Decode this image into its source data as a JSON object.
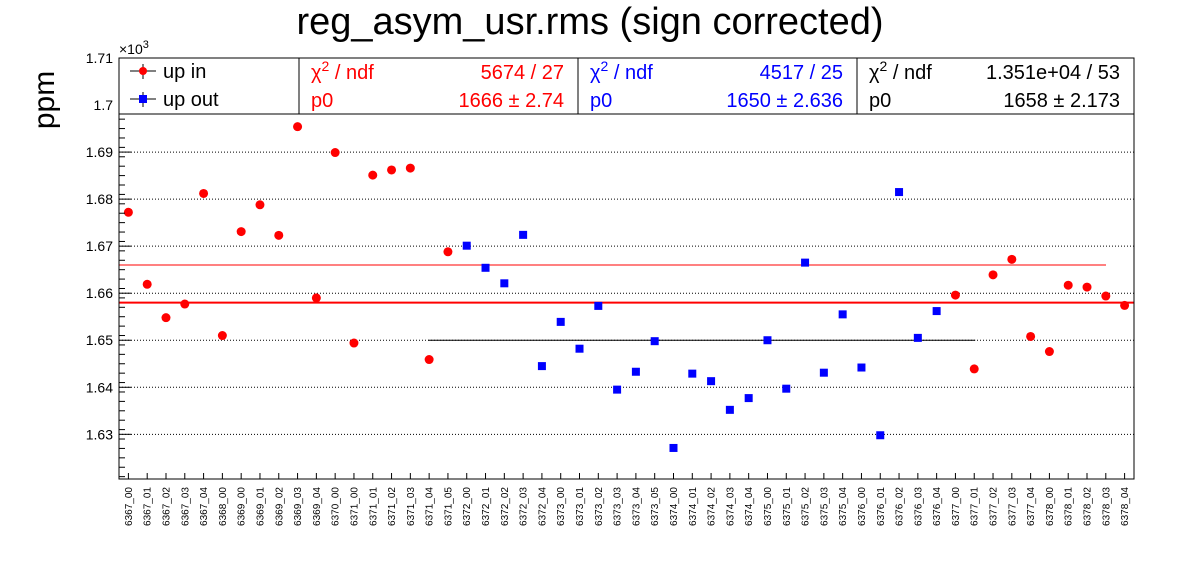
{
  "chart_data": {
    "type": "scatter",
    "title": "reg_asym_usr.rms (sign corrected)",
    "ylabel": "ppm",
    "yaxis_multiplier": "×10",
    "yaxis_multiplier_exp": "3",
    "ylim": [
      1.6205,
      1.71
    ],
    "yticks": [
      1.63,
      1.64,
      1.65,
      1.66,
      1.67,
      1.68,
      1.69,
      1.7,
      1.71
    ],
    "ytick_labels": [
      "1.63",
      "1.64",
      "1.65",
      "1.66",
      "1.67",
      "1.68",
      "1.69",
      "1.7",
      "1.71"
    ],
    "grid": true,
    "categories": [
      "6367_00",
      "6367_01",
      "6367_02",
      "6367_03",
      "6367_04",
      "6368_00",
      "6369_00",
      "6369_01",
      "6369_02",
      "6369_03",
      "6369_04",
      "6370_00",
      "6371_00",
      "6371_01",
      "6371_02",
      "6371_03",
      "6371_04",
      "6371_05",
      "6372_00",
      "6372_01",
      "6372_02",
      "6372_03",
      "6372_04",
      "6373_00",
      "6373_01",
      "6373_02",
      "6373_03",
      "6373_04",
      "6373_05",
      "6374_00",
      "6374_01",
      "6374_02",
      "6374_03",
      "6374_04",
      "6375_00",
      "6375_01",
      "6375_02",
      "6375_03",
      "6375_04",
      "6376_00",
      "6376_01",
      "6376_02",
      "6376_03",
      "6376_04",
      "6377_00",
      "6377_01",
      "6377_02",
      "6377_03",
      "6377_04",
      "6378_00",
      "6378_01",
      "6378_02",
      "6378_03",
      "6378_04"
    ],
    "series": [
      {
        "name": "up in",
        "color": "#ff0000",
        "marker": "circle",
        "points": [
          [
            0,
            1.6772
          ],
          [
            1,
            1.6619
          ],
          [
            2,
            1.6548
          ],
          [
            3,
            1.6577
          ],
          [
            4,
            1.6812
          ],
          [
            5,
            1.651
          ],
          [
            6,
            1.6731
          ],
          [
            7,
            1.6788
          ],
          [
            8,
            1.6723
          ],
          [
            9,
            1.6954
          ],
          [
            10,
            1.659
          ],
          [
            11,
            1.6899
          ],
          [
            12,
            1.6494
          ],
          [
            13,
            1.6851
          ],
          [
            14,
            1.6862
          ],
          [
            15,
            1.6866
          ],
          [
            16,
            1.6459
          ],
          [
            17,
            1.6688
          ],
          [
            44,
            1.6596
          ],
          [
            45,
            1.6439
          ],
          [
            46,
            1.6639
          ],
          [
            47,
            1.6672
          ],
          [
            48,
            1.6508
          ],
          [
            49,
            1.6476
          ],
          [
            50,
            1.6617
          ],
          [
            51,
            1.6613
          ],
          [
            52,
            1.6594
          ],
          [
            53,
            1.6574
          ]
        ],
        "fit_p0": 1666,
        "fit_range": [
          0,
          53
        ]
      },
      {
        "name": "up out",
        "color": "#0000ff",
        "marker": "square",
        "points": [
          [
            18,
            1.6701
          ],
          [
            19,
            1.6654
          ],
          [
            20,
            1.6621
          ],
          [
            21,
            1.6724
          ],
          [
            22,
            1.6445
          ],
          [
            23,
            1.6539
          ],
          [
            24,
            1.6482
          ],
          [
            25,
            1.6573
          ],
          [
            26,
            1.6395
          ],
          [
            27,
            1.6433
          ],
          [
            28,
            1.6498
          ],
          [
            29,
            1.6271
          ],
          [
            30,
            1.6429
          ],
          [
            31,
            1.6413
          ],
          [
            32,
            1.6352
          ],
          [
            33,
            1.6377
          ],
          [
            34,
            1.65
          ],
          [
            35,
            1.6397
          ],
          [
            36,
            1.6665
          ],
          [
            37,
            1.6431
          ],
          [
            38,
            1.6555
          ],
          [
            39,
            1.6442
          ],
          [
            40,
            1.6298
          ],
          [
            41,
            1.6815
          ],
          [
            42,
            1.6505
          ],
          [
            43,
            1.6562
          ]
        ],
        "fit_p0": 1650,
        "fit_range": [
          16,
          45
        ]
      }
    ],
    "combined_fit_p0": 1658,
    "combined_fit_color": "#ff0000",
    "legend": {
      "placement": "top-left",
      "entries": [
        {
          "label": "up in",
          "color": "#ff0000"
        },
        {
          "label": "up out",
          "color": "#0000ff"
        }
      ]
    },
    "stats": [
      {
        "color": "#ff0000",
        "chi_label": "χ",
        "chi_exp": "2",
        "ndf_label": " / ndf",
        "chi_value": "5674 / 27",
        "p_label": "p0",
        "p_value": "1666 ±  2.74"
      },
      {
        "color": "#0000ff",
        "chi_label": "χ",
        "chi_exp": "2",
        "ndf_label": " / ndf",
        "chi_value": "4517 / 25",
        "p_label": "p0",
        "p_value": "1650 ± 2.636"
      },
      {
        "color": "#000000",
        "chi_label": "χ",
        "chi_exp": "2",
        "ndf_label": " / ndf",
        "chi_value": "1.351e+04 / 53",
        "p_label": "p0",
        "p_value": "1658 ± 2.173"
      }
    ]
  }
}
